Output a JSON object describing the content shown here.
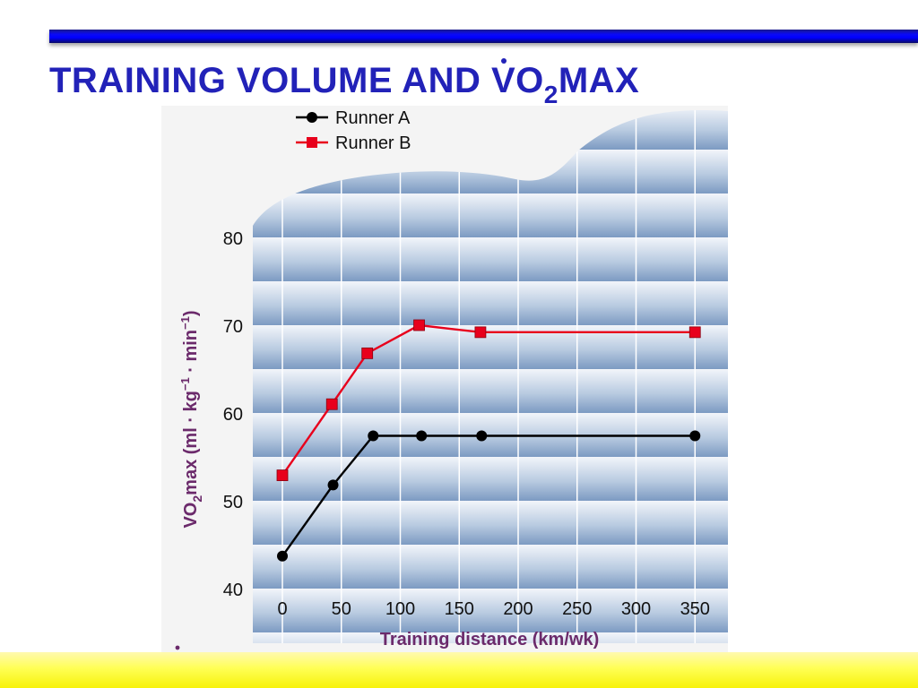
{
  "slide": {
    "title_prefix": "TRAINING VOLUME AND ",
    "title_v": "V",
    "title_o": "O",
    "title_sub": "2",
    "title_suffix": "MAX"
  },
  "colors": {
    "title": "#2222b8",
    "axis_label": "#6b2a6b",
    "runner_a": "#000000",
    "runner_b": "#e8001c"
  },
  "chart_data": {
    "type": "line",
    "title": "",
    "xlabel": "Training distance (km/wk)",
    "ylabel": {
      "v": "V",
      "o": "O",
      "sub2": "2",
      "max": "max (ml · kg",
      "sup1": "−1",
      "mid": " · min",
      "sup2": "−1",
      "end": ")"
    },
    "x_ticks": [
      "0",
      "50",
      "100",
      "150",
      "200",
      "250",
      "300",
      "350"
    ],
    "y_ticks": [
      "40",
      "50",
      "60",
      "70",
      "80"
    ],
    "ylim": [
      40,
      80
    ],
    "xlim": [
      0,
      350
    ],
    "legend_position": "top-left",
    "series": [
      {
        "name": "Runner A",
        "marker": "circle",
        "x": [
          0,
          43,
          77,
          118,
          169,
          350
        ],
        "y": [
          43.8,
          51.9,
          57.5,
          57.5,
          57.5,
          57.5
        ]
      },
      {
        "name": "Runner B",
        "marker": "square",
        "x": [
          0,
          42,
          72,
          116,
          168,
          350
        ],
        "y": [
          53.0,
          61.1,
          66.9,
          70.1,
          69.3,
          69.3
        ]
      }
    ]
  }
}
